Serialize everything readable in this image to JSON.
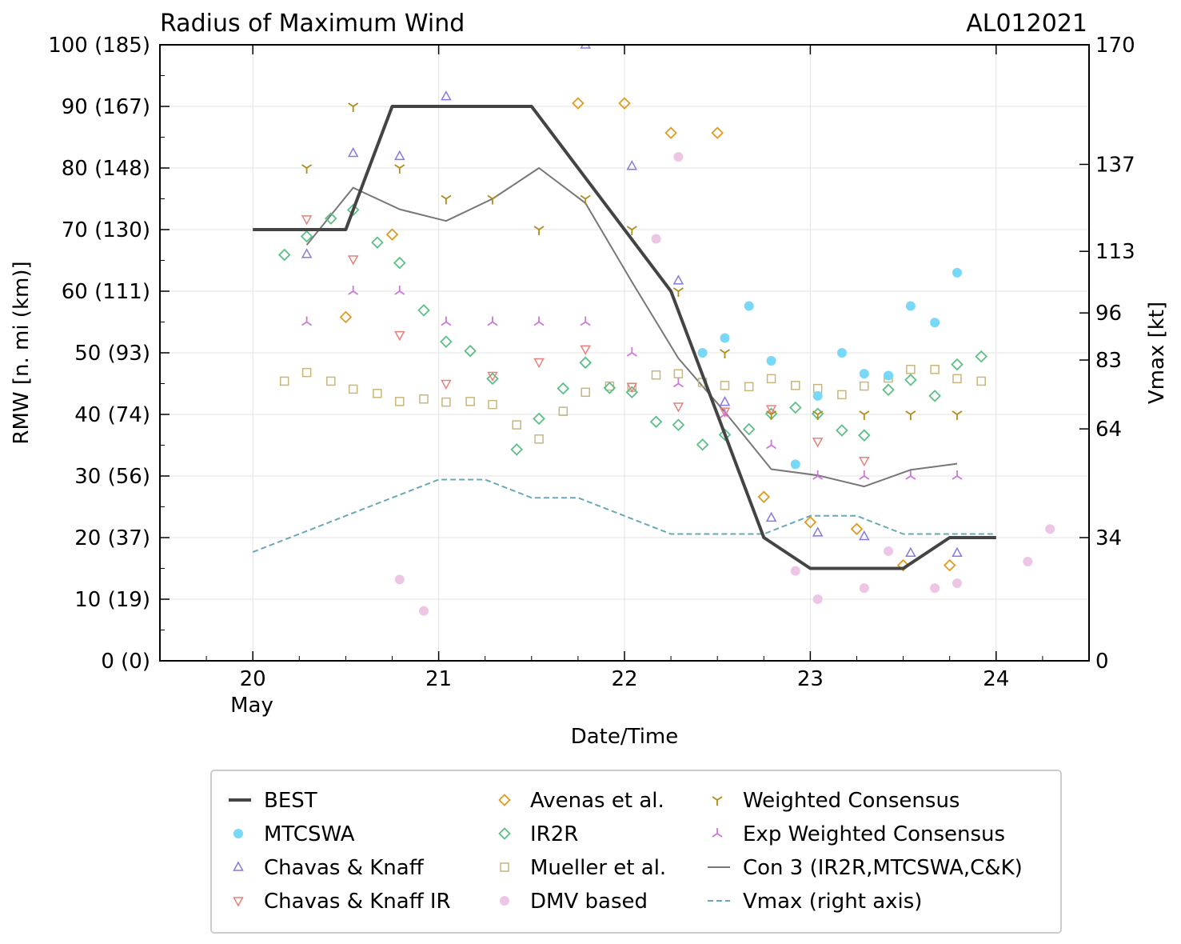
{
  "colors": {
    "best": "#444444",
    "mtcswa": "#77d8f8",
    "ck": "#8878e0",
    "ckir": "#e8807a",
    "avenas": "#e09a20",
    "ir2r": "#5cbf86",
    "mueller": "#c8b67a",
    "dmv": "#edc6e6",
    "wc": "#b08c1c",
    "ewc": "#cc78d8",
    "con3": "#777777",
    "vmax": "#6aa8b8"
  },
  "chart_data": {
    "type": "scatter",
    "title": "Radius of Maximum Wind",
    "storm_id": "AL012021",
    "xlabel": "Date/Time",
    "ylabel": "RMW [n. mi (km)]",
    "y2label": "Vmax [kt]",
    "xlim": [
      19.5,
      24.5
    ],
    "ylim": [
      0,
      100
    ],
    "y2lim": [
      0,
      170
    ],
    "x_ticks": [
      {
        "value": 20,
        "label": "20"
      },
      {
        "value": 21,
        "label": "21"
      },
      {
        "value": 22,
        "label": "22"
      },
      {
        "value": 23,
        "label": "23"
      },
      {
        "value": 24,
        "label": "24"
      }
    ],
    "x_month_label": "May",
    "y_ticks": [
      {
        "value": 0,
        "label": "0 (0)"
      },
      {
        "value": 10,
        "label": "10 (19)"
      },
      {
        "value": 20,
        "label": "20 (37)"
      },
      {
        "value": 30,
        "label": "30 (56)"
      },
      {
        "value": 40,
        "label": "40 (74)"
      },
      {
        "value": 50,
        "label": "50 (93)"
      },
      {
        "value": 60,
        "label": "60 (111)"
      },
      {
        "value": 70,
        "label": "70 (130)"
      },
      {
        "value": 80,
        "label": "80 (148)"
      },
      {
        "value": 90,
        "label": "90 (167)"
      },
      {
        "value": 100,
        "label": "100 (185)"
      }
    ],
    "y2_ticks": [
      {
        "value": 0,
        "label": "0"
      },
      {
        "value": 34,
        "label": "34"
      },
      {
        "value": 64,
        "label": "64"
      },
      {
        "value": 83,
        "label": "83"
      },
      {
        "value": 96,
        "label": "96"
      },
      {
        "value": 113,
        "label": "113"
      },
      {
        "value": 137,
        "label": "137"
      },
      {
        "value": 170,
        "label": "170"
      }
    ],
    "series": [
      {
        "id": "best",
        "name": "BEST",
        "kind": "line",
        "style": "solid-thick",
        "x": [
          20,
          20.5,
          20.75,
          21.5,
          22.25,
          22.75,
          23,
          23.5,
          23.75,
          24
        ],
        "y": [
          70,
          70,
          90,
          90,
          60,
          20,
          15,
          15,
          20,
          20
        ]
      },
      {
        "id": "mtcswa",
        "name": "MTCSWA",
        "kind": "scatter",
        "marker": "circle",
        "x": [
          22.42,
          22.54,
          22.67,
          22.79,
          22.92,
          23.04,
          23.17,
          23.29,
          23.42,
          23.54,
          23.67,
          23.79
        ],
        "y": [
          50,
          52.4,
          57.6,
          48.7,
          31.9,
          43,
          50,
          46.6,
          46.3,
          57.6,
          54.9,
          63
        ]
      },
      {
        "id": "ck",
        "name": "Chavas & Knaff",
        "kind": "scatter",
        "marker": "triangle-up",
        "x": [
          20.29,
          20.54,
          20.79,
          21.04,
          21.79,
          22.04,
          22.29,
          22.54,
          22.79,
          23.04,
          23.29,
          23.54,
          23.79
        ],
        "y": [
          66,
          82.4,
          81.9,
          91.6,
          100,
          80.3,
          61.7,
          42,
          23.2,
          20.8,
          20.2,
          17.5,
          17.5
        ]
      },
      {
        "id": "ckir",
        "name": "Chavas & Knaff IR",
        "kind": "scatter",
        "marker": "triangle-down",
        "x": [
          20.29,
          20.54,
          20.79,
          21.04,
          21.29,
          21.54,
          21.79,
          22.04,
          22.29,
          22.54,
          22.79,
          23.04,
          23.29
        ],
        "y": [
          71.7,
          65.2,
          52.9,
          45,
          46.3,
          48.5,
          50.6,
          44.5,
          41.3,
          40.5,
          40.9,
          35.6,
          32.5
        ]
      },
      {
        "id": "avenas",
        "name": "Avenas et al.",
        "kind": "scatter",
        "marker": "diamond",
        "x": [
          20.5,
          20.75,
          21.75,
          22,
          22.25,
          22.5,
          22.75,
          23,
          23.25,
          23.5,
          23.75
        ],
        "y": [
          55.8,
          69.2,
          90.5,
          90.5,
          85.7,
          85.7,
          26.6,
          22.5,
          21.4,
          15.5,
          15.5
        ]
      },
      {
        "id": "ir2r",
        "name": "IR2R",
        "kind": "scatter",
        "marker": "diamond",
        "x": [
          20.17,
          20.29,
          20.42,
          20.54,
          20.67,
          20.79,
          20.92,
          21.04,
          21.17,
          21.29,
          21.42,
          21.54,
          21.67,
          21.79,
          21.92,
          22.04,
          22.17,
          22.29,
          22.42,
          22.54,
          22.67,
          22.79,
          22.92,
          23.04,
          23.17,
          23.29,
          23.42,
          23.54,
          23.67,
          23.79,
          23.92
        ],
        "y": [
          65.9,
          68.9,
          71.8,
          73.2,
          67.9,
          64.6,
          56.9,
          51.8,
          50.3,
          45.8,
          34.3,
          39.3,
          44.2,
          48.4,
          44.3,
          43.6,
          38.8,
          38.3,
          35.1,
          36.7,
          37.6,
          40.1,
          41.1,
          40.1,
          37.4,
          36.6,
          44,
          45.6,
          43,
          48.1,
          49.4
        ]
      },
      {
        "id": "mueller",
        "name": "Mueller et al.",
        "kind": "scatter",
        "marker": "square",
        "x": [
          20.17,
          20.29,
          20.42,
          20.54,
          20.67,
          20.79,
          20.92,
          21.04,
          21.17,
          21.29,
          21.42,
          21.54,
          21.67,
          21.79,
          21.92,
          22.04,
          22.17,
          22.29,
          22.42,
          22.54,
          22.67,
          22.79,
          22.92,
          23.04,
          23.17,
          23.29,
          23.42,
          23.54,
          23.67,
          23.79,
          23.92
        ],
        "y": [
          45.4,
          46.8,
          45.4,
          44.1,
          43.4,
          42.1,
          42.5,
          42,
          42.1,
          41.6,
          38.3,
          36,
          40.5,
          43.6,
          44.6,
          44.4,
          46.4,
          46.6,
          45.2,
          44.7,
          44.5,
          45.8,
          44.7,
          44.2,
          43.2,
          44.6,
          45.9,
          47.3,
          47.3,
          45.8,
          45.4
        ]
      },
      {
        "id": "dmv",
        "name": "DMV based",
        "kind": "scatter",
        "marker": "circle",
        "x": [
          20.79,
          20.92,
          22.29,
          22.17,
          22.92,
          23.04,
          23.29,
          23.42,
          23.67,
          23.79,
          24.17,
          24.29
        ],
        "y": [
          13.2,
          8.1,
          81.8,
          68.5,
          14.6,
          10,
          11.8,
          17.8,
          11.8,
          12.6,
          16.1,
          21.4
        ]
      },
      {
        "id": "wc",
        "name": "Weighted Consensus",
        "kind": "scatter",
        "marker": "tri-down",
        "x": [
          20.29,
          20.54,
          20.79,
          21.04,
          21.29,
          21.54,
          21.79,
          22.04,
          22.29,
          22.54,
          22.79,
          23.04,
          23.29,
          23.54,
          23.79
        ],
        "y": [
          80,
          90,
          80,
          75,
          75,
          70,
          75,
          70,
          60,
          50,
          40,
          40,
          40,
          40,
          40
        ]
      },
      {
        "id": "ewc",
        "name": "Exp Weighted Consensus",
        "kind": "scatter",
        "marker": "tri-up",
        "x": [
          20.29,
          20.54,
          20.79,
          21.04,
          21.29,
          21.54,
          21.79,
          22.04,
          22.29,
          22.54,
          22.79,
          23.04,
          23.29,
          23.54,
          23.79
        ],
        "y": [
          55,
          60,
          60,
          55,
          55,
          55,
          55,
          50,
          45,
          40,
          35,
          30,
          30,
          30,
          30
        ]
      },
      {
        "id": "con3",
        "name": "Con 3 (IR2R,MTCSWA,C&K)",
        "kind": "line",
        "style": "solid-thin",
        "x": [
          20.29,
          20.54,
          20.79,
          21.04,
          21.29,
          21.54,
          21.79,
          22.04,
          22.29,
          22.54,
          22.79,
          23.04,
          23.29,
          23.54,
          23.79
        ],
        "y": [
          67.5,
          76.8,
          73.3,
          71.4,
          75,
          80,
          74.3,
          61.5,
          49.1,
          40.4,
          31.1,
          30.1,
          28.3,
          31,
          32
        ]
      },
      {
        "id": "vmax",
        "name": "Vmax (right axis)",
        "kind": "line",
        "style": "dashed",
        "axis": "right",
        "x": [
          20,
          21,
          21.25,
          21.5,
          21.75,
          22.25,
          22.75,
          23,
          23.25,
          23.5,
          24
        ],
        "y": [
          30,
          50,
          50,
          45,
          45,
          35,
          35,
          40,
          40,
          35,
          35
        ]
      }
    ],
    "legend": {
      "position": "bottom",
      "columns": [
        [
          "best",
          "mtcswa",
          "ck",
          "ckir"
        ],
        [
          "avenas",
          "ir2r",
          "mueller",
          "dmv"
        ],
        [
          "wc",
          "ewc",
          "con3",
          "vmax"
        ]
      ]
    }
  }
}
